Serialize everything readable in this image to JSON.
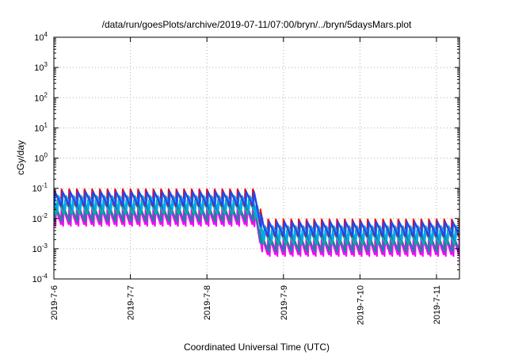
{
  "chart_data": {
    "type": "line",
    "title": "/data/run/goesPlots/archive/2019-07-11/07:00/bryn/../bryn/5daysMars.plot",
    "xlabel": "Coordinated Universal Time (UTC)",
    "ylabel": "cGy/day",
    "yscale": "log",
    "ylim": [
      0.0001,
      10000
    ],
    "xlim_days": [
      0,
      5.3
    ],
    "grid": true,
    "x_ticks": [
      {
        "day": 0,
        "label": "2019-7-6"
      },
      {
        "day": 1,
        "label": "2019-7-7"
      },
      {
        "day": 2,
        "label": "2019-7-8"
      },
      {
        "day": 3,
        "label": "2019-7-9"
      },
      {
        "day": 4,
        "label": "2019-7-10"
      },
      {
        "day": 5,
        "label": "2019-7-11"
      }
    ],
    "y_ticks": [
      {
        "value": 0.0001,
        "base": "10",
        "exp": "-4"
      },
      {
        "value": 0.001,
        "base": "10",
        "exp": "-3"
      },
      {
        "value": 0.01,
        "base": "10",
        "exp": "-2"
      },
      {
        "value": 0.1,
        "base": "10",
        "exp": "-1"
      },
      {
        "value": 1,
        "base": "10",
        "exp": "0"
      },
      {
        "value": 10,
        "base": "10",
        "exp": "1"
      },
      {
        "value": 100,
        "base": "10",
        "exp": "2"
      },
      {
        "value": 1000,
        "base": "10",
        "exp": "3"
      },
      {
        "value": 10000,
        "base": "10",
        "exp": "4"
      }
    ],
    "pattern": {
      "period_days": 0.1,
      "drop_day": 2.68,
      "drop_width_days": 0.12,
      "peak_before_drop": 0.075,
      "peak_after_drop": 0.0075
    },
    "series": [
      {
        "color": "#ff00ff",
        "peak_factor": 0.45,
        "decay": 18.0,
        "phase": 0.0
      },
      {
        "color": "#ff00ff",
        "peak_factor": 0.33,
        "decay": 16.0,
        "phase": 0.03
      },
      {
        "color": "#009090",
        "peak_factor": 0.38,
        "decay": 14.0,
        "phase": 0.015
      },
      {
        "color": "#00b0b0",
        "peak_factor": 0.55,
        "decay": 12.0,
        "phase": 0.045
      },
      {
        "color": "#ff0000",
        "peak_factor": 1.25,
        "decay": 14.0,
        "phase": 0.0
      },
      {
        "color": "#0090ff",
        "peak_factor": 0.95,
        "decay": 10.0,
        "phase": 0.02
      },
      {
        "color": "#00a8ff",
        "peak_factor": 0.75,
        "decay": 11.0,
        "phase": 0.06
      },
      {
        "color": "#3040e0",
        "peak_factor": 1.05,
        "decay": 12.0,
        "phase": 0.01
      }
    ]
  }
}
